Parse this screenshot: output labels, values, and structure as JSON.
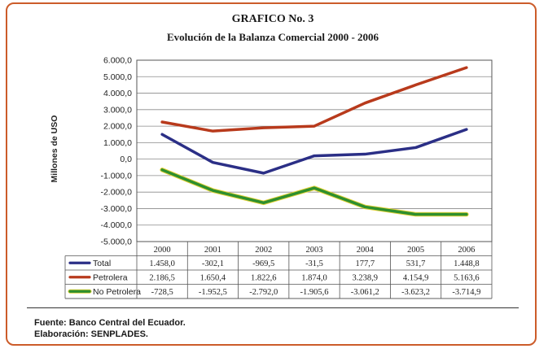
{
  "chart_data": {
    "type": "line",
    "title": "GRAFICO No. 3",
    "subtitle": "Evolución de la Balanza Comercial 2000 - 2006",
    "ylabel": "Millones de USO",
    "xlabel": "",
    "ylim": [
      -5000,
      6000
    ],
    "y_ticks": [
      6000,
      5000,
      4000,
      3000,
      2000,
      1000,
      0,
      -1000,
      -2000,
      -3000,
      -4000,
      -5000
    ],
    "y_tick_labels": [
      "6.000,0",
      "5.000,0",
      "4.000,0",
      "3.000,0",
      "2.000,0",
      "1.000,0",
      "0,0",
      "-1.000,0",
      "-2.000,0",
      "-3.000,0",
      "-4.000,0",
      "-5.000,0"
    ],
    "categories": [
      "2000",
      "2001",
      "2002",
      "2003",
      "2004",
      "2005",
      "2006"
    ],
    "grid": true,
    "series": [
      {
        "name": "Total",
        "color": "#2b2f86",
        "values": [
          1458.0,
          -302.1,
          -969.5,
          -31.5,
          177.7,
          531.7,
          1448.8
        ],
        "plotted": [
          1500,
          -200,
          -850,
          200,
          300,
          700,
          1800
        ],
        "labels": [
          "1.458,0",
          "-302,1",
          "-969,5",
          "-31,5",
          "177,7",
          "531,7",
          "1.448,8"
        ]
      },
      {
        "name": "Petrolera",
        "color": "#b83a1c",
        "values": [
          2186.5,
          1650.4,
          1822.6,
          1874.0,
          3238.9,
          4154.9,
          5163.6
        ],
        "plotted": [
          2250,
          1700,
          1900,
          2000,
          3400,
          4500,
          5550
        ],
        "labels": [
          "2.186,5",
          "1.650,4",
          "1.822,6",
          "1.874,0",
          "3.238,9",
          "4.154,9",
          "5.163,6"
        ]
      },
      {
        "name": "No Petrolera",
        "color": "#2e8f2e",
        "edge_color": "#e3d23a",
        "values": [
          -728.5,
          -1952.5,
          -2792.0,
          -1905.6,
          -3061.2,
          -3623.2,
          -3714.9
        ],
        "plotted": [
          -650,
          -1900,
          -2650,
          -1750,
          -2900,
          -3350,
          -3350
        ],
        "labels": [
          "-728,5",
          "-1.952,5",
          "-2.792,0",
          "-1.905,6",
          "-3.061,2",
          "-3.623,2",
          "-3.714,9"
        ]
      }
    ]
  },
  "footer": {
    "source": "Fuente: Banco Central del Ecuador.",
    "credit": "Elaboración: SENPLADES."
  }
}
